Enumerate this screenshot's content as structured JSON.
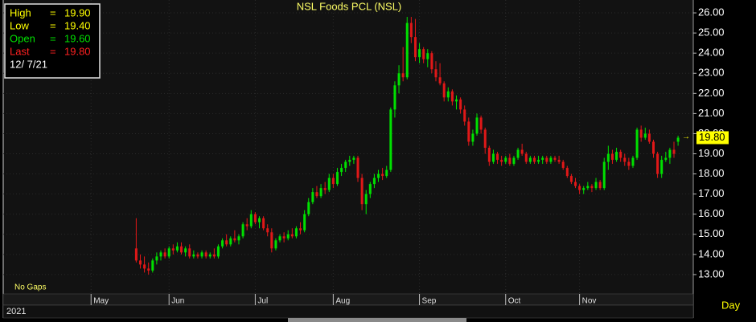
{
  "chart_data": {
    "type": "candlestick",
    "title": "NSL Foods PCL (NSL)",
    "up_color": "#00e000",
    "down_color": "#e01818",
    "ylim": [
      12.04,
      26.64
    ],
    "yticks": [
      {
        "value": 13,
        "label": "13.00"
      },
      {
        "value": 14,
        "label": "14.00"
      },
      {
        "value": 15,
        "label": "15.00"
      },
      {
        "value": 16,
        "label": "16.00"
      },
      {
        "value": 17,
        "label": "17.00"
      },
      {
        "value": 18,
        "label": "18.00"
      },
      {
        "value": 19,
        "label": "19.00"
      },
      {
        "value": 20,
        "label": "20.00"
      },
      {
        "value": 21,
        "label": "21.00"
      },
      {
        "value": 22,
        "label": "22.00"
      },
      {
        "value": 23,
        "label": "23.00"
      },
      {
        "value": 24,
        "label": "24.00"
      },
      {
        "value": 25,
        "label": "25.00"
      },
      {
        "value": 26,
        "label": "26.00"
      }
    ],
    "xlim": [
      -32.4,
      135.7
    ],
    "xticks": [
      {
        "value": -11,
        "label": "May"
      },
      {
        "value": 8,
        "label": "Jun"
      },
      {
        "value": 29,
        "label": "Jul"
      },
      {
        "value": 48,
        "label": "Aug"
      },
      {
        "value": 69,
        "label": "Sep"
      },
      {
        "value": 90,
        "label": "Oct"
      },
      {
        "value": 108,
        "label": "Nov"
      }
    ],
    "year_label": "2021",
    "period_label": "Day",
    "note": "No Gaps",
    "last_price": {
      "value": 19.8,
      "label": "19.80"
    },
    "info": {
      "separator": "=",
      "date": "12/ 7/21",
      "rows": [
        {
          "label": "High",
          "value": "19.90",
          "color": "#ffff00"
        },
        {
          "label": "Low",
          "value": "19.40",
          "color": "#ffff00"
        },
        {
          "label": "Open",
          "value": "19.60",
          "color": "#00e000"
        },
        {
          "label": "Last",
          "value": "19.80",
          "color": "#ff2020"
        }
      ]
    },
    "candles": [
      [
        14.3,
        15.8,
        13.6,
        13.7
      ],
      [
        13.7,
        14.0,
        13.3,
        13.5
      ],
      [
        13.5,
        13.9,
        13.1,
        13.3
      ],
      [
        13.3,
        13.6,
        13.0,
        13.2
      ],
      [
        13.2,
        13.8,
        13.1,
        13.7
      ],
      [
        13.7,
        14.1,
        13.5,
        13.9
      ],
      [
        13.9,
        14.2,
        13.7,
        14.1
      ],
      [
        14.1,
        14.3,
        13.8,
        13.9
      ],
      [
        13.9,
        14.4,
        13.8,
        14.3
      ],
      [
        14.3,
        14.5,
        14.0,
        14.2
      ],
      [
        14.2,
        14.6,
        14.1,
        14.4
      ],
      [
        14.4,
        14.6,
        14.0,
        14.1
      ],
      [
        14.1,
        14.4,
        13.9,
        14.3
      ],
      [
        14.3,
        14.5,
        13.8,
        13.9
      ],
      [
        13.9,
        14.2,
        13.8,
        14.0
      ],
      [
        14.0,
        14.1,
        13.8,
        13.9
      ],
      [
        13.9,
        14.2,
        13.8,
        14.1
      ],
      [
        14.1,
        14.2,
        13.8,
        13.9
      ],
      [
        13.9,
        14.1,
        13.8,
        14.0
      ],
      [
        14.0,
        14.3,
        13.8,
        13.9
      ],
      [
        13.9,
        14.5,
        13.8,
        14.4
      ],
      [
        14.4,
        14.8,
        14.3,
        14.7
      ],
      [
        14.7,
        15.0,
        14.4,
        14.5
      ],
      [
        14.5,
        14.9,
        14.4,
        14.8
      ],
      [
        14.8,
        15.2,
        14.6,
        14.7
      ],
      [
        14.7,
        15.0,
        14.5,
        14.9
      ],
      [
        14.9,
        15.6,
        14.8,
        15.5
      ],
      [
        15.5,
        15.8,
        15.2,
        15.4
      ],
      [
        15.4,
        16.2,
        15.3,
        16.0
      ],
      [
        16.0,
        16.1,
        15.5,
        15.6
      ],
      [
        15.6,
        15.9,
        15.3,
        15.8
      ],
      [
        15.8,
        15.9,
        15.2,
        15.3
      ],
      [
        15.3,
        15.5,
        14.9,
        15.1
      ],
      [
        15.1,
        15.3,
        14.1,
        14.3
      ],
      [
        14.3,
        14.8,
        14.2,
        14.7
      ],
      [
        14.7,
        15.0,
        14.6,
        14.9
      ],
      [
        14.9,
        15.1,
        14.6,
        14.8
      ],
      [
        14.8,
        15.2,
        14.7,
        15.0
      ],
      [
        15.0,
        15.3,
        14.8,
        14.9
      ],
      [
        14.9,
        15.4,
        14.8,
        15.3
      ],
      [
        15.3,
        15.6,
        15.0,
        15.2
      ],
      [
        15.2,
        16.2,
        15.1,
        16.0
      ],
      [
        16.0,
        16.8,
        15.9,
        16.6
      ],
      [
        16.6,
        17.3,
        16.5,
        17.1
      ],
      [
        17.1,
        17.4,
        16.8,
        16.9
      ],
      [
        16.9,
        17.5,
        16.8,
        17.3
      ],
      [
        17.3,
        17.6,
        17.0,
        17.2
      ],
      [
        17.2,
        18.0,
        17.1,
        17.8
      ],
      [
        17.8,
        18.0,
        17.3,
        17.5
      ],
      [
        17.5,
        18.3,
        17.4,
        18.1
      ],
      [
        18.1,
        18.5,
        17.9,
        18.3
      ],
      [
        18.3,
        18.7,
        18.1,
        18.6
      ],
      [
        18.6,
        18.9,
        18.4,
        18.7
      ],
      [
        18.7,
        18.9,
        18.5,
        18.8
      ],
      [
        18.8,
        18.9,
        17.6,
        17.8
      ],
      [
        17.8,
        18.0,
        16.2,
        16.5
      ],
      [
        16.5,
        17.2,
        16.0,
        17.0
      ],
      [
        17.0,
        17.6,
        16.8,
        17.5
      ],
      [
        17.5,
        18.0,
        17.3,
        17.8
      ],
      [
        17.8,
        18.2,
        17.6,
        18.0
      ],
      [
        18.0,
        18.3,
        17.7,
        17.9
      ],
      [
        17.9,
        18.4,
        17.8,
        18.2
      ],
      [
        18.2,
        21.3,
        18.1,
        21.2
      ],
      [
        21.2,
        22.6,
        20.8,
        22.4
      ],
      [
        22.4,
        23.4,
        22.0,
        23.0
      ],
      [
        23.0,
        24.3,
        22.6,
        22.8
      ],
      [
        22.8,
        25.8,
        22.7,
        25.5
      ],
      [
        25.5,
        25.8,
        24.5,
        24.8
      ],
      [
        24.8,
        25.7,
        23.6,
        23.8
      ],
      [
        23.8,
        24.5,
        23.5,
        24.2
      ],
      [
        24.2,
        24.3,
        23.5,
        23.7
      ],
      [
        23.7,
        24.2,
        23.3,
        24.0
      ],
      [
        24.0,
        24.1,
        23.0,
        23.2
      ],
      [
        23.2,
        23.6,
        22.6,
        22.8
      ],
      [
        22.8,
        23.5,
        22.4,
        22.5
      ],
      [
        22.5,
        22.6,
        21.6,
        21.8
      ],
      [
        21.8,
        22.3,
        21.6,
        22.1
      ],
      [
        22.1,
        22.2,
        21.4,
        21.6
      ],
      [
        21.6,
        21.9,
        21.2,
        21.7
      ],
      [
        21.7,
        21.8,
        21.0,
        21.2
      ],
      [
        21.2,
        21.4,
        20.4,
        20.6
      ],
      [
        20.6,
        20.8,
        19.4,
        19.6
      ],
      [
        19.6,
        20.2,
        19.4,
        20.0
      ],
      [
        20.0,
        21.0,
        19.9,
        20.8
      ],
      [
        20.8,
        20.9,
        20.0,
        20.2
      ],
      [
        20.2,
        20.3,
        19.0,
        19.3
      ],
      [
        19.3,
        19.4,
        18.4,
        18.6
      ],
      [
        18.6,
        19.2,
        18.5,
        19.0
      ],
      [
        19.0,
        19.1,
        18.5,
        18.7
      ],
      [
        18.7,
        18.9,
        18.4,
        18.6
      ],
      [
        18.6,
        18.9,
        18.5,
        18.8
      ],
      [
        18.8,
        19.0,
        18.4,
        18.5
      ],
      [
        18.5,
        18.9,
        18.4,
        18.8
      ],
      [
        18.8,
        19.3,
        18.7,
        19.2
      ],
      [
        19.2,
        19.5,
        18.9,
        19.0
      ],
      [
        19.0,
        19.1,
        18.5,
        18.6
      ],
      [
        18.6,
        18.9,
        18.5,
        18.8
      ],
      [
        18.8,
        18.9,
        18.5,
        18.6
      ],
      [
        18.6,
        18.9,
        18.5,
        18.7
      ],
      [
        18.7,
        18.9,
        18.5,
        18.8
      ],
      [
        18.8,
        18.9,
        18.5,
        18.6
      ],
      [
        18.6,
        18.9,
        18.5,
        18.8
      ],
      [
        18.8,
        18.9,
        18.6,
        18.7
      ],
      [
        18.7,
        18.9,
        18.5,
        18.6
      ],
      [
        18.6,
        18.7,
        18.2,
        18.3
      ],
      [
        18.3,
        18.4,
        17.8,
        17.9
      ],
      [
        17.9,
        18.0,
        17.5,
        17.6
      ],
      [
        17.6,
        17.8,
        17.3,
        17.4
      ],
      [
        17.4,
        17.5,
        17.0,
        17.2
      ],
      [
        17.2,
        17.4,
        17.0,
        17.3
      ],
      [
        17.3,
        17.6,
        17.2,
        17.4
      ],
      [
        17.4,
        17.5,
        17.1,
        17.3
      ],
      [
        17.3,
        17.8,
        17.2,
        17.6
      ],
      [
        17.6,
        17.7,
        17.2,
        17.3
      ],
      [
        17.3,
        18.8,
        17.2,
        18.6
      ],
      [
        18.6,
        19.4,
        18.2,
        19.0
      ],
      [
        19.0,
        19.2,
        18.5,
        18.7
      ],
      [
        18.7,
        19.3,
        18.6,
        19.1
      ],
      [
        19.1,
        19.2,
        18.6,
        18.8
      ],
      [
        18.8,
        19.0,
        18.4,
        18.6
      ],
      [
        18.6,
        18.8,
        18.2,
        18.4
      ],
      [
        18.4,
        18.9,
        18.3,
        18.8
      ],
      [
        18.8,
        20.3,
        18.7,
        20.2
      ],
      [
        20.2,
        20.4,
        19.6,
        19.8
      ],
      [
        19.8,
        20.3,
        19.7,
        20.0
      ],
      [
        20.0,
        20.2,
        19.5,
        19.6
      ],
      [
        19.6,
        19.7,
        18.8,
        19.0
      ],
      [
        19.0,
        19.1,
        17.8,
        18.0
      ],
      [
        18.0,
        18.9,
        17.8,
        18.7
      ],
      [
        18.7,
        19.1,
        18.6,
        18.8
      ],
      [
        18.8,
        19.3,
        18.5,
        19.2
      ],
      [
        19.2,
        19.6,
        18.8,
        19.0
      ],
      [
        19.6,
        19.9,
        19.4,
        19.8
      ]
    ]
  }
}
